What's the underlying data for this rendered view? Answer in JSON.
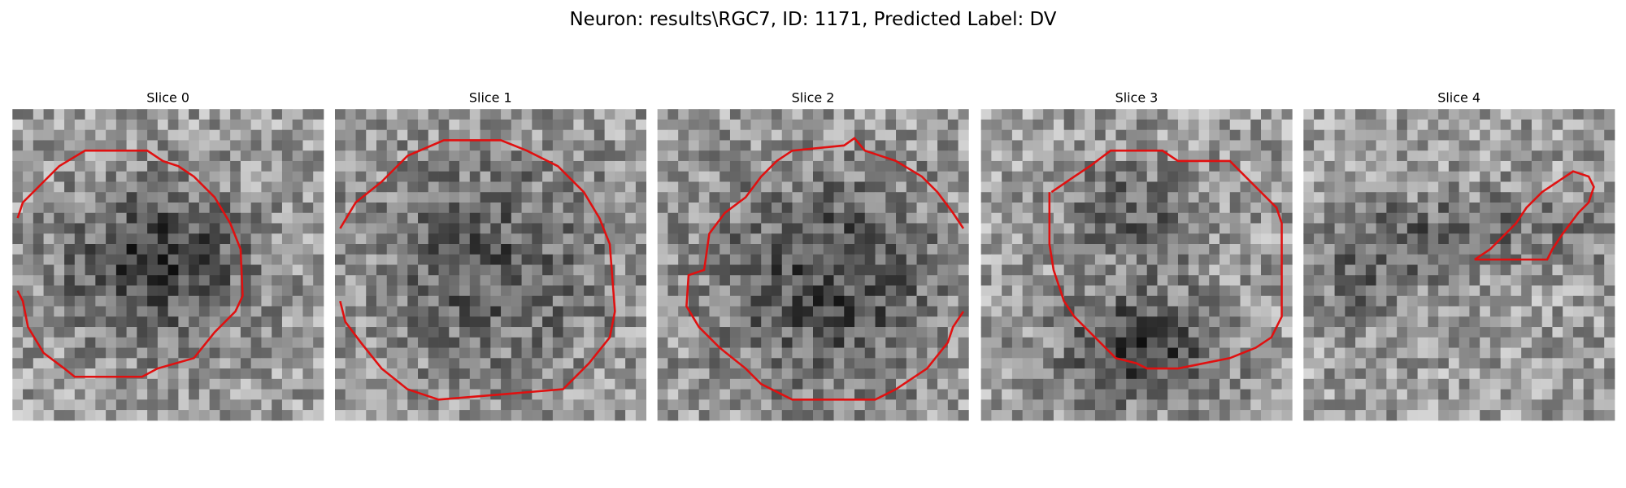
{
  "header": {
    "title": "Neuron: results\\RGC7, ID: 1171, Predicted Label: DV"
  },
  "panels": [
    {
      "label": "Slice 0"
    },
    {
      "label": "Slice 1"
    },
    {
      "label": "Slice 2"
    },
    {
      "label": "Slice 3"
    },
    {
      "label": "Slice 4"
    }
  ]
}
